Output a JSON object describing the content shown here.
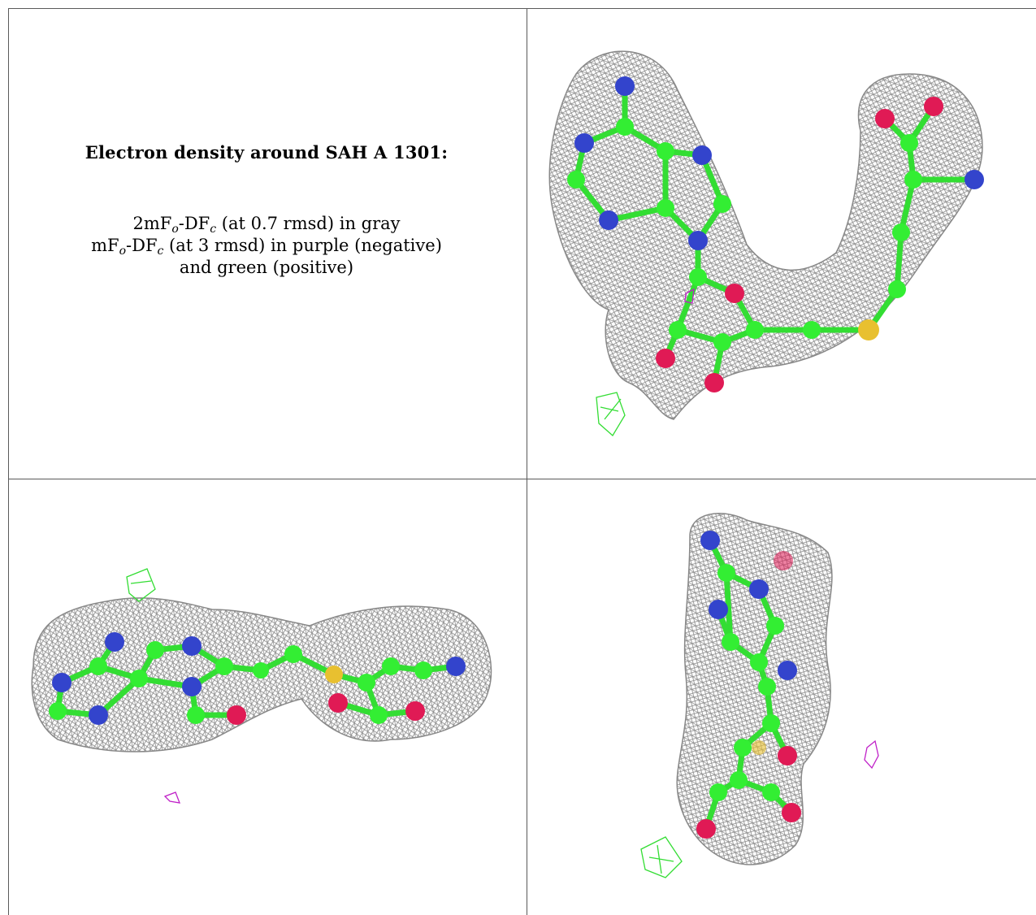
{
  "caption": {
    "title": "Electron density around SAH A 1301:",
    "line1": {
      "a": "2mF",
      "sub1": "o",
      "b": "-DF",
      "sub2": "c",
      "c": " (at 0.7 rmsd) in gray"
    },
    "line2": {
      "a": "mF",
      "sub1": "o",
      "b": "-DF",
      "sub2": "c",
      "c": " (at 3 rmsd) in purple (negative)"
    },
    "line3": "and green (positive)"
  },
  "colors": {
    "mesh_2fofc": "#9a9a9a",
    "mesh_negative": "#c020c8",
    "mesh_positive": "#33dd33",
    "carbon": "#33ee33",
    "nitrogen": "#3344cc",
    "oxygen": "#e01a55",
    "sulfur": "#e8c030"
  }
}
